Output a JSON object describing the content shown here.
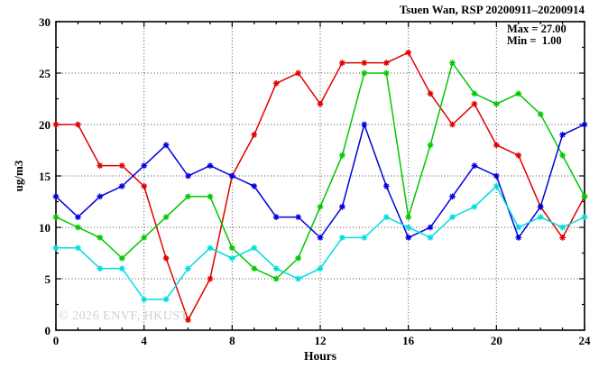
{
  "header": {
    "title": "Tsuen Wan, RSP 20200911–20200914"
  },
  "annotation_box": {
    "max_label": "Max = 27.00",
    "min_label": "Min =  1.00"
  },
  "watermark": "© 2026 ENVF, HKUST",
  "chart_data": {
    "type": "line",
    "title": "Tsuen Wan, RSP 20200911–20200914",
    "xlabel": "Hours",
    "ylabel": "ug/m3",
    "xlim": [
      0,
      24
    ],
    "ylim": [
      0,
      30
    ],
    "x_major_ticks": [
      0,
      4,
      8,
      12,
      16,
      20,
      24
    ],
    "y_major_ticks": [
      0,
      5,
      10,
      15,
      20,
      25,
      30
    ],
    "x_minor_step": 1,
    "y_minor_step": 2.5,
    "grid": true,
    "legend": "none",
    "marker": "star",
    "stats": {
      "max": 27.0,
      "min": 1.0
    },
    "x": [
      0,
      1,
      2,
      3,
      4,
      5,
      6,
      7,
      8,
      9,
      10,
      11,
      12,
      13,
      14,
      15,
      16,
      17,
      18,
      19,
      20,
      21,
      22,
      23,
      24
    ],
    "series": [
      {
        "name": "red-series",
        "color": "#e00000",
        "values": [
          20,
          20,
          16,
          16,
          14,
          7,
          1,
          5,
          15,
          19,
          24,
          25,
          22,
          26,
          26,
          26,
          27,
          23,
          20,
          22,
          18,
          17,
          12,
          9,
          13
        ]
      },
      {
        "name": "green-series",
        "color": "#00c800",
        "values": [
          11,
          10,
          9,
          7,
          9,
          11,
          13,
          13,
          8,
          6,
          5,
          7,
          12,
          17,
          25,
          25,
          11,
          18,
          26,
          23,
          22,
          23,
          21,
          17,
          13
        ]
      },
      {
        "name": "blue-series",
        "color": "#0000dd",
        "values": [
          13,
          11,
          13,
          14,
          16,
          18,
          15,
          16,
          15,
          14,
          11,
          11,
          9,
          12,
          20,
          14,
          9,
          10,
          13,
          16,
          15,
          9,
          12,
          19,
          20
        ]
      },
      {
        "name": "cyan-series",
        "color": "#00dddd",
        "values": [
          8,
          8,
          6,
          6,
          3,
          3,
          6,
          8,
          7,
          8,
          6,
          5,
          6,
          9,
          9,
          11,
          10,
          9,
          11,
          12,
          14,
          10,
          11,
          10,
          11
        ]
      }
    ]
  }
}
